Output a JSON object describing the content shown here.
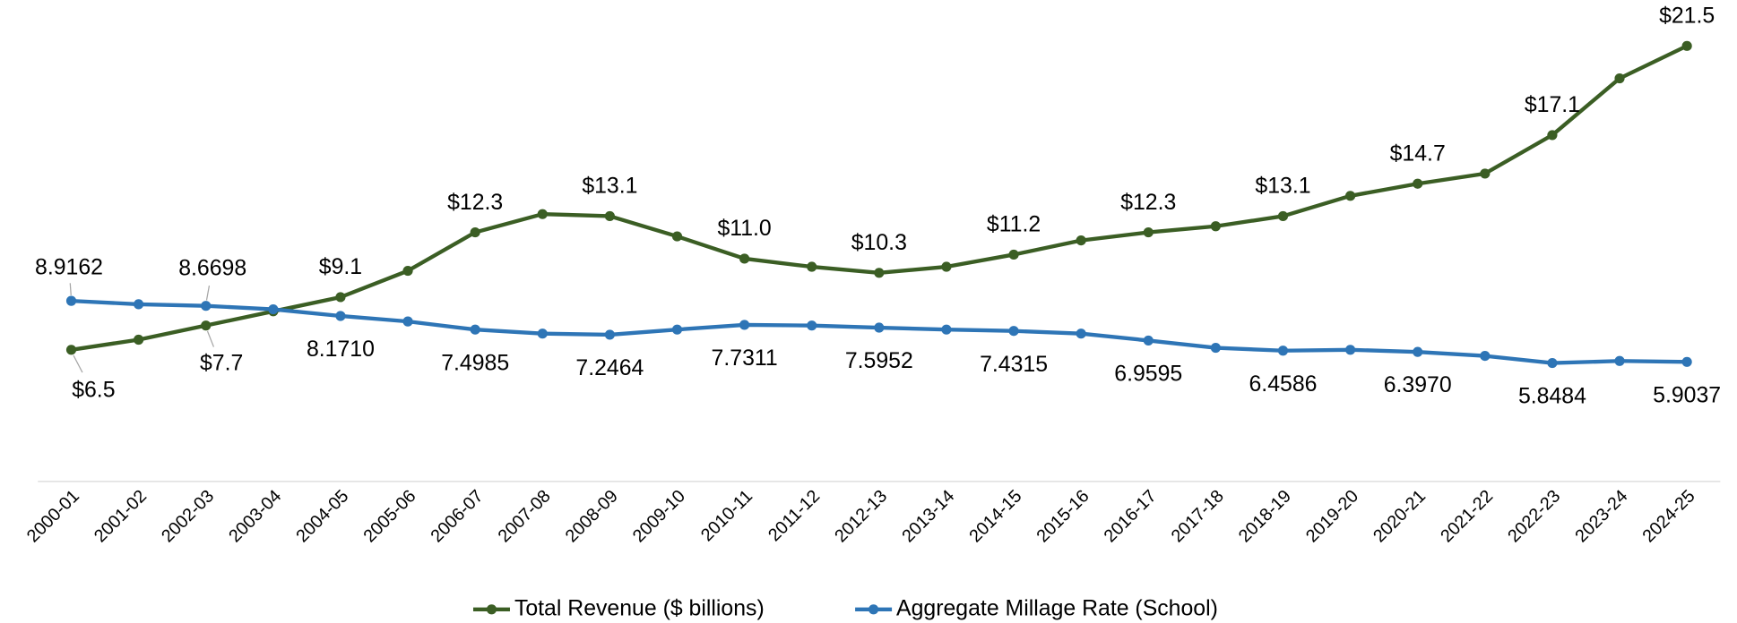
{
  "chart_data": {
    "type": "line",
    "categories": [
      "2000-01",
      "2001-02",
      "2002-03",
      "2003-04",
      "2004-05",
      "2005-06",
      "2006-07",
      "2007-08",
      "2008-09",
      "2009-10",
      "2010-11",
      "2011-12",
      "2012-13",
      "2013-14",
      "2014-15",
      "2015-16",
      "2016-17",
      "2017-18",
      "2018-19",
      "2019-20",
      "2020-21",
      "2021-22",
      "2022-23",
      "2023-24",
      "2024-25"
    ],
    "series": [
      {
        "name": "Total Revenue ($ billions)",
        "color": "#3b5e24",
        "values": [
          6.5,
          7.0,
          7.7,
          8.4,
          9.1,
          10.4,
          12.3,
          13.2,
          13.1,
          12.1,
          11.0,
          10.6,
          10.3,
          10.6,
          11.2,
          11.9,
          12.3,
          12.6,
          13.1,
          14.1,
          14.7,
          15.2,
          17.1,
          19.9,
          21.5
        ],
        "value_labels": [
          "$6.5",
          null,
          "$7.7",
          null,
          "$9.1",
          null,
          "$12.3",
          null,
          "$13.1",
          null,
          "$11.0",
          null,
          "$10.3",
          null,
          "$11.2",
          null,
          "$12.3",
          null,
          "$13.1",
          null,
          "$14.7",
          null,
          "$17.1",
          null,
          "$21.5"
        ]
      },
      {
        "name": "Aggregate Millage Rate (School)",
        "color": "#2e75b6",
        "values": [
          8.9162,
          8.75,
          8.6698,
          8.5,
          8.171,
          7.9,
          7.4985,
          7.3,
          7.2464,
          7.5,
          7.7311,
          7.7,
          7.5952,
          7.5,
          7.4315,
          7.3,
          6.9595,
          6.6,
          6.4586,
          6.5,
          6.397,
          6.2,
          5.8484,
          5.95,
          5.9037
        ],
        "value_labels": [
          "8.9162",
          null,
          "8.6698",
          null,
          "8.1710",
          null,
          "7.4985",
          null,
          "7.2464",
          null,
          "7.7311",
          null,
          "7.5952",
          null,
          "7.4315",
          null,
          "6.9595",
          null,
          "6.4586",
          null,
          "6.3970",
          null,
          "5.8484",
          null,
          "5.9037"
        ]
      }
    ],
    "ylim": [
      0,
      23
    ],
    "legend": "bottom"
  }
}
